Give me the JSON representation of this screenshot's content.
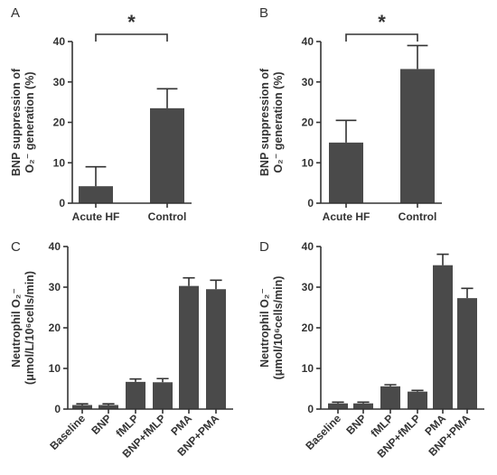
{
  "chart_data": [
    {
      "type": "bar",
      "panel": "A",
      "ylabel_line1": "BNP suppression of",
      "ylabel_line2": "O₂⁻ generation (%)",
      "categories": [
        "Acute HF",
        "Control"
      ],
      "values": [
        4.2,
        23.5
      ],
      "errors": [
        4.8,
        4.8
      ],
      "ylim": [
        0,
        40
      ],
      "yticks": [
        0,
        10,
        20,
        30,
        40
      ],
      "significance": {
        "from": 0,
        "to": 1,
        "label": "*"
      }
    },
    {
      "type": "bar",
      "panel": "B",
      "ylabel_line1": "BNP suppression of",
      "ylabel_line2": "O₂⁻ generation (%)",
      "categories": [
        "Acute HF",
        "Control"
      ],
      "values": [
        15.0,
        33.2
      ],
      "errors": [
        5.5,
        5.8
      ],
      "ylim": [
        0,
        40
      ],
      "yticks": [
        0,
        10,
        20,
        30,
        40
      ],
      "significance": {
        "from": 0,
        "to": 1,
        "label": "*"
      }
    },
    {
      "type": "bar",
      "panel": "C",
      "ylabel_line1": "Neutrophil O₂⁻",
      "ylabel_line2": "(μmol/L/10⁶cells/min)",
      "categories": [
        "Baseline",
        "BNP",
        "fMLP",
        "BNP+fMLP",
        "PMA",
        "BNP+PMA"
      ],
      "values": [
        1.0,
        1.0,
        6.7,
        6.6,
        30.3,
        29.5
      ],
      "errors": [
        0.3,
        0.3,
        0.7,
        0.9,
        2.0,
        2.2
      ],
      "ylim": [
        0,
        40
      ],
      "yticks": [
        0,
        10,
        20,
        30,
        40
      ]
    },
    {
      "type": "bar",
      "panel": "D",
      "ylabel_line1": "Neutrophil O₂⁻",
      "ylabel_line2": "(μmol/10⁶cells/min)",
      "categories": [
        "Baseline",
        "BNP",
        "fMLP",
        "BNP+fMLP",
        "PMA",
        "BNP+PMA"
      ],
      "values": [
        1.4,
        1.4,
        5.6,
        4.3,
        35.4,
        27.3
      ],
      "errors": [
        0.3,
        0.3,
        0.4,
        0.3,
        2.7,
        2.4
      ],
      "ylim": [
        0,
        40
      ],
      "yticks": [
        0,
        10,
        20,
        30,
        40
      ]
    }
  ]
}
